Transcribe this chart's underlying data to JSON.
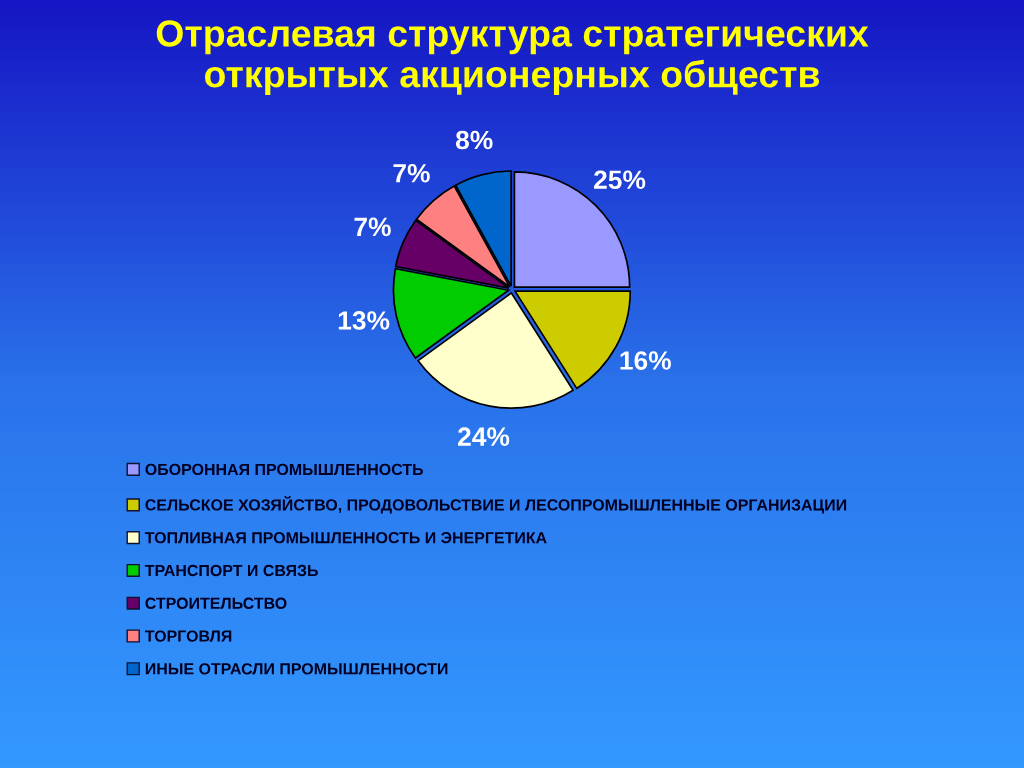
{
  "chart_data": {
    "type": "pie",
    "title": "Отраслевая структура стратегических\nоткрытых акционерных обществ",
    "categories": [
      "ОБОРОННАЯ ПРОМЫШЛЕННОСТЬ",
      "СЕЛЬСКОЕ ХОЗЯЙСТВО, ПРОДОВОЛЬСТВИЕ И ЛЕСОПРОМЫШЛЕННЫЕ ОРГАНИЗАЦИИ",
      "ТОПЛИВНАЯ ПРОМЫШЛЕННОСТЬ И ЭНЕРГЕТИКА",
      "ТРАНСПОРТ И СВЯЗЬ",
      "СТРОИТЕЛЬСТВО",
      "ТОРГОВЛЯ",
      "ИНЫЕ ОТРАСЛИ ПРОМЫШЛЕННОСТИ"
    ],
    "values": [
      25,
      16,
      24,
      13,
      7,
      7,
      8
    ],
    "value_labels": [
      "25%",
      "16%",
      "24%",
      "13%",
      "7%",
      "7%",
      "8%"
    ],
    "colors": [
      "#9999ff",
      "#cccc00",
      "#ffffcc",
      "#00cc00",
      "#660066",
      "#ff8080",
      "#0066cc"
    ],
    "legend": "bottom"
  }
}
